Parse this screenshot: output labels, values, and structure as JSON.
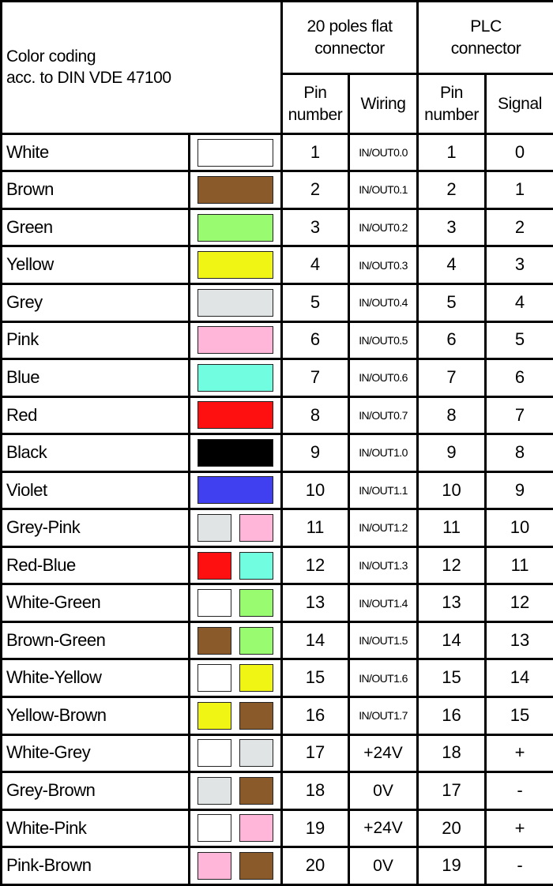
{
  "header": {
    "title_line1": "Color coding",
    "title_line2": "acc. to DIN VDE 47100",
    "group1": "20 poles flat connector",
    "group2": "PLC connector",
    "col_pin1": "Pin number",
    "col_wiring": "Wiring",
    "col_pin2": "Pin number",
    "col_signal": "Signal"
  },
  "colors": {
    "White": "#ffffff",
    "Brown": "#8b5a2b",
    "Green": "#98fb70",
    "Yellow": "#f0f514",
    "Grey": "#e0e4e4",
    "Pink": "#ffb6d9",
    "Blue": "#70fde0",
    "Red": "#ff1010",
    "Black": "#000000",
    "Violet": "#4040f0"
  },
  "rows": [
    {
      "name": "White",
      "pin": "1",
      "wiring": "IN/OUT0.0",
      "plc_pin": "1",
      "signal": "0"
    },
    {
      "name": "Brown",
      "pin": "2",
      "wiring": "IN/OUT0.1",
      "plc_pin": "2",
      "signal": "1"
    },
    {
      "name": "Green",
      "pin": "3",
      "wiring": "IN/OUT0.2",
      "plc_pin": "3",
      "signal": "2"
    },
    {
      "name": "Yellow",
      "pin": "4",
      "wiring": "IN/OUT0.3",
      "plc_pin": "4",
      "signal": "3"
    },
    {
      "name": "Grey",
      "pin": "5",
      "wiring": "IN/OUT0.4",
      "plc_pin": "5",
      "signal": "4"
    },
    {
      "name": "Pink",
      "pin": "6",
      "wiring": "IN/OUT0.5",
      "plc_pin": "6",
      "signal": "5"
    },
    {
      "name": "Blue",
      "pin": "7",
      "wiring": "IN/OUT0.6",
      "plc_pin": "7",
      "signal": "6"
    },
    {
      "name": "Red",
      "pin": "8",
      "wiring": "IN/OUT0.7",
      "plc_pin": "8",
      "signal": "7"
    },
    {
      "name": "Black",
      "pin": "9",
      "wiring": "IN/OUT1.0",
      "plc_pin": "9",
      "signal": "8"
    },
    {
      "name": "Violet",
      "pin": "10",
      "wiring": "IN/OUT1.1",
      "plc_pin": "10",
      "signal": "9"
    },
    {
      "name": "Grey-Pink",
      "pin": "11",
      "wiring": "IN/OUT1.2",
      "plc_pin": "11",
      "signal": "10"
    },
    {
      "name": "Red-Blue",
      "pin": "12",
      "wiring": "IN/OUT1.3",
      "plc_pin": "12",
      "signal": "11"
    },
    {
      "name": "White-Green",
      "pin": "13",
      "wiring": "IN/OUT1.4",
      "plc_pin": "13",
      "signal": "12"
    },
    {
      "name": "Brown-Green",
      "pin": "14",
      "wiring": "IN/OUT1.5",
      "plc_pin": "14",
      "signal": "13"
    },
    {
      "name": "White-Yellow",
      "pin": "15",
      "wiring": "IN/OUT1.6",
      "plc_pin": "15",
      "signal": "14"
    },
    {
      "name": "Yellow-Brown",
      "pin": "16",
      "wiring": "IN/OUT1.7",
      "plc_pin": "16",
      "signal": "15"
    },
    {
      "name": "White-Grey",
      "pin": "17",
      "wiring": "+24V",
      "plc_pin": "18",
      "signal": "+"
    },
    {
      "name": "Grey-Brown",
      "pin": "18",
      "wiring": "0V",
      "plc_pin": "17",
      "signal": "-"
    },
    {
      "name": "White-Pink",
      "pin": "19",
      "wiring": "+24V",
      "plc_pin": "20",
      "signal": "+"
    },
    {
      "name": "Pink-Brown",
      "pin": "20",
      "wiring": "0V",
      "plc_pin": "19",
      "signal": "-"
    }
  ]
}
